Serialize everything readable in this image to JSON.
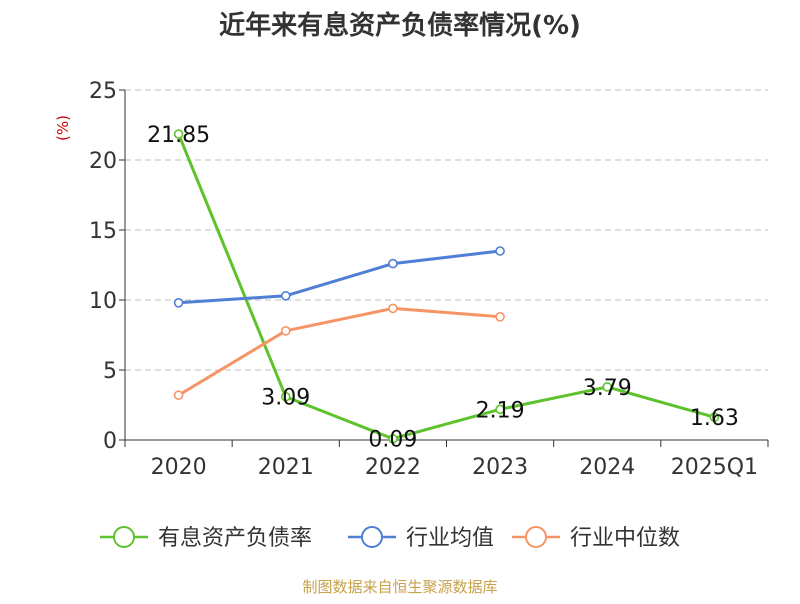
{
  "chart_data": {
    "type": "line",
    "title": "近年来有息资产负债率情况(%)",
    "ylabel": "(%)",
    "xlabel": "",
    "ylim": [
      0,
      25
    ],
    "yticks": [
      0,
      5,
      10,
      15,
      20,
      25
    ],
    "grid": true,
    "legend_position": "bottom",
    "categories": [
      "2020",
      "2021",
      "2022",
      "2023",
      "2024",
      "2025Q1"
    ],
    "series": [
      {
        "name": "有息资产负债率",
        "color": "#5ec22d",
        "values": [
          21.85,
          3.09,
          0.09,
          2.19,
          3.79,
          1.63
        ],
        "labels": [
          "21.85",
          "3.09",
          "0.09",
          "2.19",
          "3.79",
          "1.63"
        ],
        "show_labels": true
      },
      {
        "name": "行业均值",
        "color": "#4f7fd4",
        "values": [
          9.8,
          10.3,
          12.6,
          13.5,
          null,
          null
        ],
        "show_labels": false
      },
      {
        "name": "行业中位数",
        "color": "#f79466",
        "values": [
          3.2,
          7.8,
          9.4,
          8.8,
          null,
          null
        ],
        "show_labels": false
      }
    ],
    "source": "制图数据来自恒生聚源数据库"
  }
}
